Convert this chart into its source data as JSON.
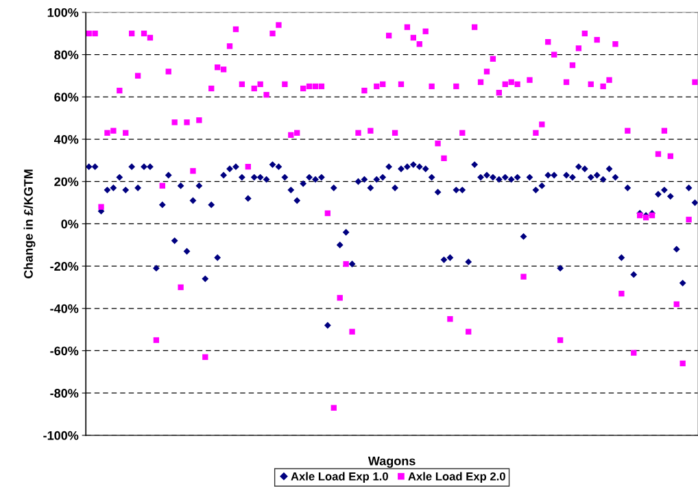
{
  "chart_data": {
    "type": "scatter",
    "xlabel": "Wagons",
    "ylabel": "Change in £/KGTM",
    "categories": [
      null,
      null,
      null,
      null,
      null,
      null,
      null,
      null,
      null,
      null,
      null,
      null,
      null,
      null,
      null,
      null,
      null,
      null,
      null,
      null,
      null,
      null,
      null,
      null,
      null,
      null,
      null,
      null,
      null,
      null,
      null,
      null,
      null,
      null,
      null,
      null,
      null,
      null,
      null,
      null,
      null,
      null,
      null,
      null,
      null,
      null,
      null,
      null,
      null,
      null,
      null,
      null,
      null,
      null,
      null,
      null,
      null,
      null,
      null,
      null,
      null,
      null,
      null,
      null,
      null,
      null,
      null,
      null,
      null,
      null,
      null,
      null,
      null,
      null,
      null,
      null,
      null,
      null,
      null,
      null,
      null,
      null,
      null,
      null,
      null,
      null,
      null,
      null,
      null,
      null,
      null,
      null,
      null,
      null,
      null,
      null,
      null,
      null,
      null,
      null
    ],
    "series": [
      {
        "name": "Axle Load Exp 1.0",
        "color": "#000080",
        "marker": "diamond",
        "values": [
          27,
          27,
          6,
          16,
          17,
          22,
          16,
          27,
          17,
          27,
          27,
          -21,
          9,
          23,
          -8,
          18,
          -13,
          11,
          18,
          -26,
          9,
          -16,
          23,
          26,
          27,
          22,
          12,
          22,
          22,
          21,
          28,
          27,
          22,
          16,
          11,
          19,
          22,
          21,
          22,
          -48,
          17,
          -10,
          -4,
          -19,
          20,
          21,
          17,
          21,
          22,
          27,
          17,
          26,
          27,
          28,
          27,
          26,
          22,
          15,
          -17,
          -16,
          16,
          16,
          -18,
          28,
          22,
          23,
          22,
          21,
          22,
          21,
          22,
          -6,
          22,
          16,
          18,
          23,
          23,
          -21,
          23,
          22,
          27,
          26,
          22,
          23,
          21,
          26,
          22,
          -16,
          17,
          -24,
          5,
          4,
          5,
          14,
          16,
          13,
          -12,
          -28,
          17,
          10
        ]
      },
      {
        "name": "Axle Load Exp 2.0",
        "color": "#ff00ff",
        "marker": "square",
        "values": [
          90,
          90,
          8,
          43,
          44,
          63,
          43,
          90,
          70,
          90,
          88,
          -55,
          18,
          72,
          48,
          -30,
          48,
          25,
          49,
          -63,
          64,
          74,
          73,
          84,
          92,
          66,
          27,
          64,
          66,
          61,
          90,
          94,
          66,
          42,
          43,
          64,
          65,
          65,
          65,
          5,
          -87,
          -35,
          -19,
          -51,
          43,
          63,
          44,
          65,
          66,
          89,
          43,
          66,
          93,
          88,
          85,
          91,
          65,
          38,
          31,
          -45,
          65,
          43,
          -51,
          93,
          67,
          72,
          78,
          62,
          66,
          67,
          66,
          -25,
          68,
          43,
          47,
          86,
          80,
          -55,
          67,
          75,
          83,
          90,
          66,
          87,
          65,
          68,
          85,
          -33,
          44,
          -61,
          4,
          3,
          4,
          33,
          44,
          32,
          -38,
          -66,
          2,
          67
        ]
      }
    ],
    "ylim": [
      -100,
      100
    ],
    "yticks": [
      {
        "value": -100,
        "label": "-100%"
      },
      {
        "value": -80,
        "label": "-80%"
      },
      {
        "value": -60,
        "label": "-60%"
      },
      {
        "value": -40,
        "label": "-40%"
      },
      {
        "value": -20,
        "label": "-20%"
      },
      {
        "value": 0,
        "label": "0%"
      },
      {
        "value": 20,
        "label": "20%"
      },
      {
        "value": 40,
        "label": "40%"
      },
      {
        "value": 60,
        "label": "60%"
      },
      {
        "value": 80,
        "label": "80%"
      },
      {
        "value": 100,
        "label": "100%"
      }
    ],
    "grid": "y",
    "legend": "bottom",
    "tick_labels": "y"
  }
}
